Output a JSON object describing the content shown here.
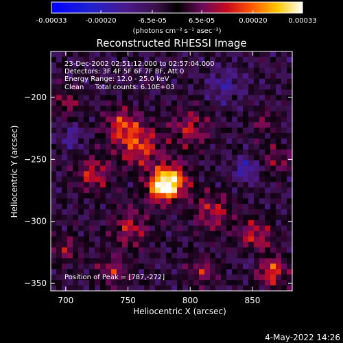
{
  "colorbar": {
    "ticks": [
      "-0.00033",
      "-0.00020",
      "-6.5e-05",
      "6.5e-05",
      "0.00020",
      "0.00033"
    ],
    "tick_values": [
      -0.00033,
      -0.0002,
      -6.5e-05,
      6.5e-05,
      0.0002,
      0.00033
    ],
    "range": [
      -0.00033,
      0.00033
    ],
    "unit_label": "(photons cm⁻² s⁻¹ asec⁻²)"
  },
  "chart_data": {
    "type": "heatmap",
    "title": "Reconstructed RHESSI Image",
    "xlabel": "Heliocentric X (arcsec)",
    "ylabel": "Heliocentric Y (arcsec)",
    "xlim": [
      688,
      882
    ],
    "ylim": [
      -356,
      -163
    ],
    "x_ticks": [
      700,
      750,
      800,
      850
    ],
    "y_ticks": [
      -200,
      -250,
      -300,
      -350
    ],
    "x_tick_labels": [
      "700",
      "750",
      "800",
      "850"
    ],
    "y_tick_labels": [
      "−200",
      "−250",
      "−300",
      "−350"
    ],
    "peak": {
      "x": 787,
      "y": -272
    },
    "blobs": [
      {
        "x": 784,
        "y": -268,
        "r": 14,
        "v": 1.0
      },
      {
        "x": 775,
        "y": -274,
        "r": 10,
        "v": 0.55
      },
      {
        "x": 760,
        "y": -240,
        "r": 18,
        "v": 0.55
      },
      {
        "x": 745,
        "y": -222,
        "r": 15,
        "v": 0.5
      },
      {
        "x": 722,
        "y": -262,
        "r": 14,
        "v": 0.5
      },
      {
        "x": 800,
        "y": -225,
        "r": 16,
        "v": 0.45
      },
      {
        "x": 752,
        "y": -305,
        "r": 16,
        "v": 0.45
      },
      {
        "x": 818,
        "y": -292,
        "r": 16,
        "v": 0.45
      },
      {
        "x": 852,
        "y": -312,
        "r": 14,
        "v": 0.5
      },
      {
        "x": 865,
        "y": -340,
        "r": 13,
        "v": 0.6
      },
      {
        "x": 810,
        "y": -340,
        "r": 12,
        "v": 0.4
      },
      {
        "x": 700,
        "y": -205,
        "r": 12,
        "v": 0.35
      },
      {
        "x": 700,
        "y": -322,
        "r": 12,
        "v": 0.35
      },
      {
        "x": 738,
        "y": -340,
        "r": 13,
        "v": 0.4
      },
      {
        "x": 870,
        "y": -250,
        "r": 12,
        "v": 0.35
      },
      {
        "x": 860,
        "y": -220,
        "r": 10,
        "v": 0.3
      },
      {
        "x": 845,
        "y": -258,
        "r": 9,
        "v": -0.45
      },
      {
        "x": 828,
        "y": -190,
        "r": 14,
        "v": -0.3
      },
      {
        "x": 705,
        "y": -232,
        "r": 10,
        "v": -0.3
      },
      {
        "x": 850,
        "y": -330,
        "r": 10,
        "v": -0.25
      }
    ]
  },
  "annotations": {
    "time": "23-Dec-2002 02:51:12.000 to 02:57:04.000",
    "detectors": "Detectors: 3F 4F 5F 6F 7F 8F, Att 0",
    "energy": "Energy Range: 12.0 - 25.0 keV",
    "clean": "Clean     Total counts: 6.10E+03",
    "peak_label": "Position of Peak = [787,-272]"
  },
  "footer": {
    "date": "4-May-2022 14:26"
  }
}
